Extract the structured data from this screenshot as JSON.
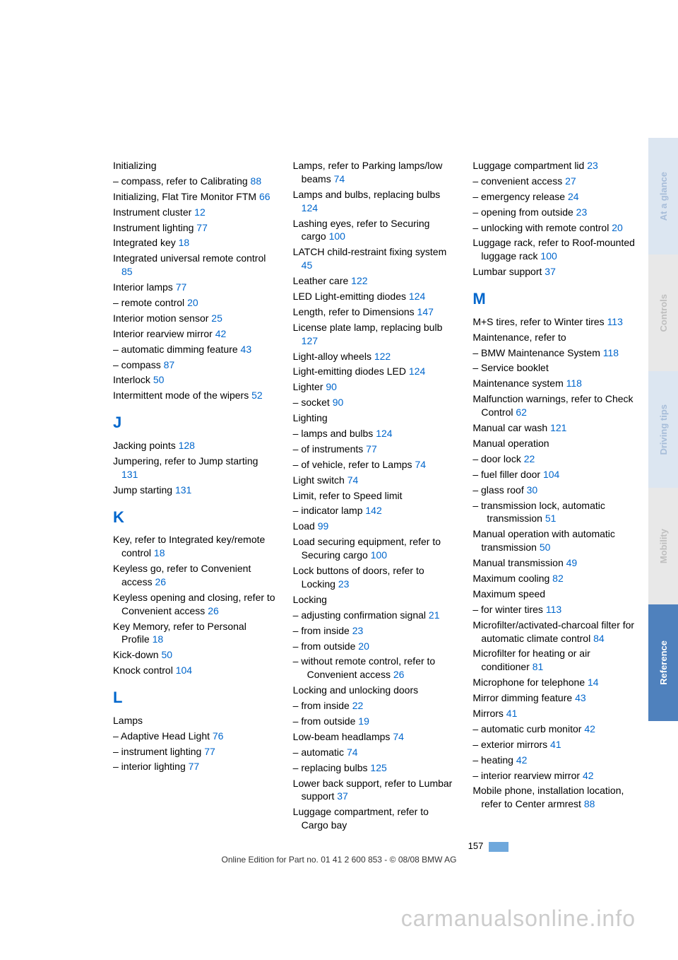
{
  "link_color": "#0066cc",
  "text_color": "#000000",
  "columns": [
    [
      {
        "t": "entry",
        "text": "Initializing"
      },
      {
        "t": "sub",
        "text": "– compass, refer to Calibrating",
        "ref": "88"
      },
      {
        "t": "entry",
        "text": "Initializing, Flat Tire Monitor FTM",
        "ref": "66"
      },
      {
        "t": "entry",
        "text": "Instrument cluster",
        "ref": "12"
      },
      {
        "t": "entry",
        "text": "Instrument lighting",
        "ref": "77"
      },
      {
        "t": "entry",
        "text": "Integrated key",
        "ref": "18"
      },
      {
        "t": "entry",
        "text": "Integrated universal remote control",
        "ref": "85"
      },
      {
        "t": "entry",
        "text": "Interior lamps",
        "ref": "77"
      },
      {
        "t": "sub",
        "text": "– remote control",
        "ref": "20"
      },
      {
        "t": "entry",
        "text": "Interior motion sensor",
        "ref": "25"
      },
      {
        "t": "entry",
        "text": "Interior rearview mirror",
        "ref": "42"
      },
      {
        "t": "sub",
        "text": "– automatic dimming feature",
        "ref": "43"
      },
      {
        "t": "sub",
        "text": "– compass",
        "ref": "87"
      },
      {
        "t": "entry",
        "text": "Interlock",
        "ref": "50"
      },
      {
        "t": "entry",
        "text": "Intermittent mode of the wipers",
        "ref": "52"
      },
      {
        "t": "head",
        "text": "J"
      },
      {
        "t": "entry",
        "text": "Jacking points",
        "ref": "128"
      },
      {
        "t": "entry",
        "text": "Jumpering, refer to Jump starting",
        "ref": "131"
      },
      {
        "t": "entry",
        "text": "Jump starting",
        "ref": "131"
      },
      {
        "t": "head",
        "text": "K"
      },
      {
        "t": "entry",
        "text": "Key, refer to Integrated key/remote control",
        "ref": "18"
      },
      {
        "t": "entry",
        "text": "Keyless go, refer to Convenient access",
        "ref": "26"
      },
      {
        "t": "entry",
        "text": "Keyless opening and closing, refer to Convenient access",
        "ref": "26"
      },
      {
        "t": "entry",
        "text": "Key Memory, refer to Personal Profile",
        "ref": "18"
      },
      {
        "t": "entry",
        "text": "Kick-down",
        "ref": "50"
      },
      {
        "t": "entry",
        "text": "Knock control",
        "ref": "104"
      },
      {
        "t": "head",
        "text": "L"
      },
      {
        "t": "entry",
        "text": "Lamps"
      },
      {
        "t": "sub",
        "text": "– Adaptive Head Light",
        "ref": "76"
      },
      {
        "t": "sub",
        "text": "– instrument lighting",
        "ref": "77"
      },
      {
        "t": "sub",
        "text": "– interior lighting",
        "ref": "77"
      }
    ],
    [
      {
        "t": "entry",
        "text": "Lamps, refer to Parking lamps/low beams",
        "ref": "74"
      },
      {
        "t": "entry",
        "text": "Lamps and bulbs, replacing bulbs",
        "ref": "124"
      },
      {
        "t": "entry",
        "text": "Lashing eyes, refer to Securing cargo",
        "ref": "100"
      },
      {
        "t": "entry",
        "text": "LATCH child-restraint fixing system",
        "ref": "45"
      },
      {
        "t": "entry",
        "text": "Leather care",
        "ref": "122"
      },
      {
        "t": "entry",
        "text": "LED Light-emitting diodes",
        "ref": "124"
      },
      {
        "t": "entry",
        "text": "Length, refer to Dimensions",
        "ref": "147"
      },
      {
        "t": "entry",
        "text": "License plate lamp, replacing bulb",
        "ref": "127"
      },
      {
        "t": "entry",
        "text": "Light-alloy wheels",
        "ref": "122"
      },
      {
        "t": "entry",
        "text": "Light-emitting diodes LED",
        "ref": "124"
      },
      {
        "t": "entry",
        "text": "Lighter",
        "ref": "90"
      },
      {
        "t": "sub",
        "text": "– socket",
        "ref": "90"
      },
      {
        "t": "entry",
        "text": "Lighting"
      },
      {
        "t": "sub",
        "text": "– lamps and bulbs",
        "ref": "124"
      },
      {
        "t": "sub",
        "text": "– of instruments",
        "ref": "77"
      },
      {
        "t": "sub",
        "text": "– of vehicle, refer to Lamps",
        "ref": "74"
      },
      {
        "t": "entry",
        "text": "Light switch",
        "ref": "74"
      },
      {
        "t": "entry",
        "text": "Limit, refer to Speed limit"
      },
      {
        "t": "sub",
        "text": "– indicator lamp",
        "ref": "142"
      },
      {
        "t": "entry",
        "text": "Load",
        "ref": "99"
      },
      {
        "t": "entry",
        "text": "Load securing equipment, refer to Securing cargo",
        "ref": "100"
      },
      {
        "t": "entry",
        "text": "Lock buttons of doors, refer to Locking",
        "ref": "23"
      },
      {
        "t": "entry",
        "text": "Locking"
      },
      {
        "t": "sub",
        "text": "– adjusting confirmation signal",
        "ref": "21"
      },
      {
        "t": "sub",
        "text": "– from inside",
        "ref": "23"
      },
      {
        "t": "sub",
        "text": "– from outside",
        "ref": "20"
      },
      {
        "t": "sub",
        "text": "– without remote control, refer to Convenient access",
        "ref": "26"
      },
      {
        "t": "entry",
        "text": "Locking and unlocking doors"
      },
      {
        "t": "sub",
        "text": "– from inside",
        "ref": "22"
      },
      {
        "t": "sub",
        "text": "– from outside",
        "ref": "19"
      },
      {
        "t": "entry",
        "text": "Low-beam headlamps",
        "ref": "74"
      },
      {
        "t": "sub",
        "text": "– automatic",
        "ref": "74"
      },
      {
        "t": "sub",
        "text": "– replacing bulbs",
        "ref": "125"
      },
      {
        "t": "entry",
        "text": "Lower back support, refer to Lumbar support",
        "ref": "37"
      },
      {
        "t": "entry",
        "text": "Luggage compartment, refer to Cargo bay"
      }
    ],
    [
      {
        "t": "entry",
        "text": "Luggage compartment lid",
        "ref": "23"
      },
      {
        "t": "sub",
        "text": "– convenient access",
        "ref": "27"
      },
      {
        "t": "sub",
        "text": "– emergency release",
        "ref": "24"
      },
      {
        "t": "sub",
        "text": "– opening from outside",
        "ref": "23"
      },
      {
        "t": "sub",
        "text": "– unlocking with remote control",
        "ref": "20"
      },
      {
        "t": "entry",
        "text": "Luggage rack, refer to Roof-mounted luggage rack",
        "ref": "100"
      },
      {
        "t": "entry",
        "text": "Lumbar support",
        "ref": "37"
      },
      {
        "t": "head",
        "text": "M"
      },
      {
        "t": "entry",
        "text": "M+S tires, refer to Winter tires",
        "ref": "113"
      },
      {
        "t": "entry",
        "text": "Maintenance, refer to"
      },
      {
        "t": "sub",
        "text": "– BMW Maintenance System",
        "ref": "118"
      },
      {
        "t": "sub",
        "text": "– Service booklet"
      },
      {
        "t": "entry",
        "text": "Maintenance system",
        "ref": "118"
      },
      {
        "t": "entry",
        "text": "Malfunction warnings, refer to Check Control",
        "ref": "62"
      },
      {
        "t": "entry",
        "text": "Manual car wash",
        "ref": "121"
      },
      {
        "t": "entry",
        "text": "Manual operation"
      },
      {
        "t": "sub",
        "text": "– door lock",
        "ref": "22"
      },
      {
        "t": "sub",
        "text": "– fuel filler door",
        "ref": "104"
      },
      {
        "t": "sub",
        "text": "– glass roof",
        "ref": "30"
      },
      {
        "t": "sub",
        "text": "– transmission lock, automatic transmission",
        "ref": "51"
      },
      {
        "t": "entry",
        "text": "Manual operation with automatic transmission",
        "ref": "50"
      },
      {
        "t": "entry",
        "text": "Manual transmission",
        "ref": "49"
      },
      {
        "t": "entry",
        "text": "Maximum cooling",
        "ref": "82"
      },
      {
        "t": "entry",
        "text": "Maximum speed"
      },
      {
        "t": "sub",
        "text": "– for winter tires",
        "ref": "113"
      },
      {
        "t": "entry",
        "text": "Microfilter/activated-charcoal filter for automatic climate control",
        "ref": "84"
      },
      {
        "t": "entry",
        "text": "Microfilter for heating or air conditioner",
        "ref": "81"
      },
      {
        "t": "entry",
        "text": "Microphone for telephone",
        "ref": "14"
      },
      {
        "t": "entry",
        "text": "Mirror dimming feature",
        "ref": "43"
      },
      {
        "t": "entry",
        "text": "Mirrors",
        "ref": "41"
      },
      {
        "t": "sub",
        "text": "– automatic curb monitor",
        "ref": "42"
      },
      {
        "t": "sub",
        "text": "– exterior mirrors",
        "ref": "41"
      },
      {
        "t": "sub",
        "text": "– heating",
        "ref": "42"
      },
      {
        "t": "sub",
        "text": "– interior rearview mirror",
        "ref": "42"
      },
      {
        "t": "entry",
        "text": "Mobile phone, installation location, refer to Center armrest",
        "ref": "88"
      }
    ]
  ],
  "tabs": [
    {
      "label": "At a glance",
      "bg": "#dce6f1",
      "fg": "#a7bdd9"
    },
    {
      "label": "Controls",
      "bg": "#e8e8e8",
      "fg": "#bfbfbf"
    },
    {
      "label": "Driving tips",
      "bg": "#dce6f1",
      "fg": "#a7bdd9"
    },
    {
      "label": "Mobility",
      "bg": "#e8e8e8",
      "fg": "#bfbfbf"
    },
    {
      "label": "Reference",
      "bg": "#4f81bd",
      "fg": "#ffffff"
    }
  ],
  "footer": {
    "page_number": "157",
    "edition_line": "Online Edition for Part no. 01 41 2 600 853 - © 08/08 BMW AG"
  },
  "watermark": "carmanualsonline.info"
}
